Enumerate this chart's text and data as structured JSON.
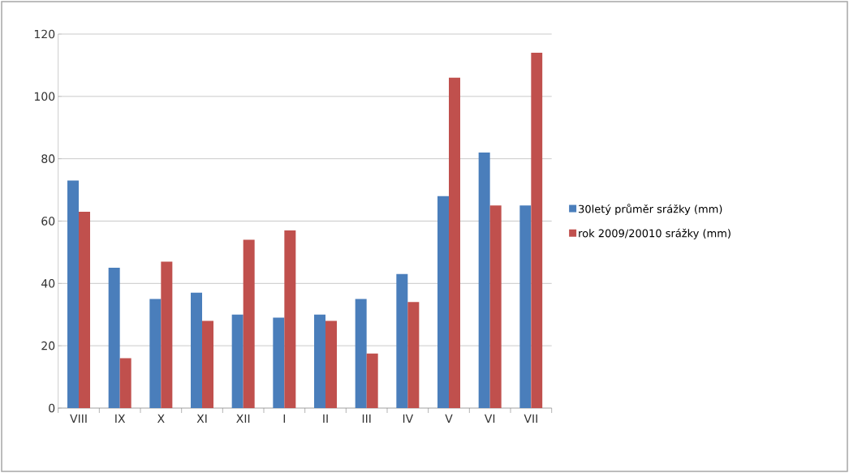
{
  "chart_data": {
    "type": "bar",
    "categories": [
      "VIII",
      "IX",
      "X",
      "XI",
      "XII",
      "I",
      "II",
      "III",
      "IV",
      "V",
      "VI",
      "VII"
    ],
    "series": [
      {
        "name": "30letý průměr srážky (mm)",
        "color": "#4a7ebb",
        "values": [
          73,
          45,
          35,
          37,
          30,
          29,
          30,
          35,
          43,
          68,
          82,
          65
        ]
      },
      {
        "name": "rok 2009/20010 srážky (mm)",
        "color": "#c0504d",
        "values": [
          63,
          16,
          47,
          28,
          54,
          57,
          28,
          17.5,
          34,
          106,
          65,
          114
        ]
      }
    ],
    "ylim": [
      0,
      120
    ],
    "yticks": [
      0,
      20,
      40,
      60,
      80,
      100,
      120
    ],
    "grid": "y",
    "legend": "right"
  }
}
